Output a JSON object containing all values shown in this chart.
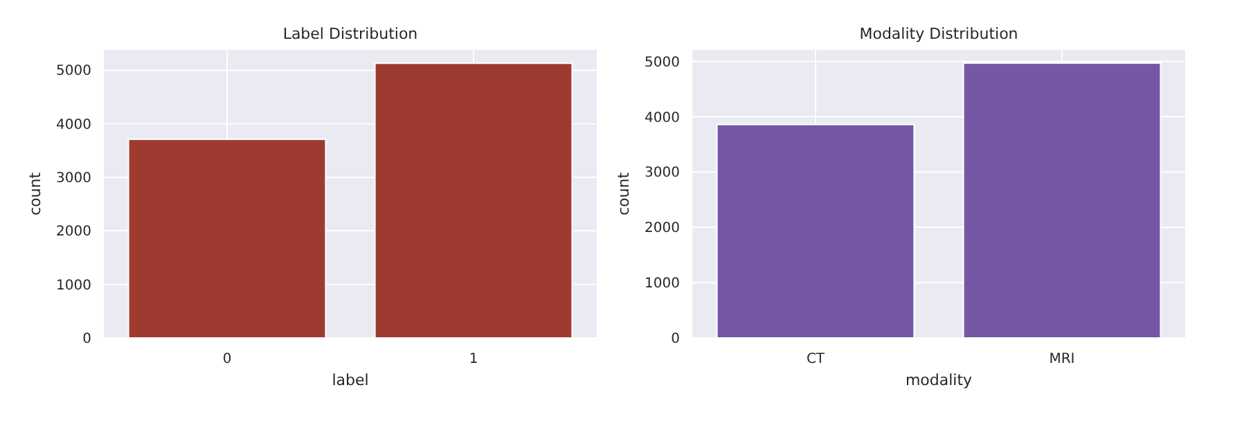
{
  "chart_data": [
    {
      "type": "bar",
      "title": "Label Distribution",
      "xlabel": "label",
      "ylabel": "count",
      "categories": [
        "0",
        "1"
      ],
      "values": [
        3710,
        5130
      ],
      "color": "#9e3b30",
      "ylim": [
        0,
        5380
      ],
      "yticks": [
        0,
        1000,
        2000,
        3000,
        4000,
        5000
      ],
      "grid": true
    },
    {
      "type": "bar",
      "title": "Modality Distribution",
      "xlabel": "modality",
      "ylabel": "count",
      "categories": [
        "CT",
        "MRI"
      ],
      "values": [
        3860,
        4970
      ],
      "color": "#7457a5",
      "ylim": [
        0,
        5210
      ],
      "yticks": [
        0,
        1000,
        2000,
        3000,
        4000,
        5000
      ],
      "grid": true
    }
  ]
}
